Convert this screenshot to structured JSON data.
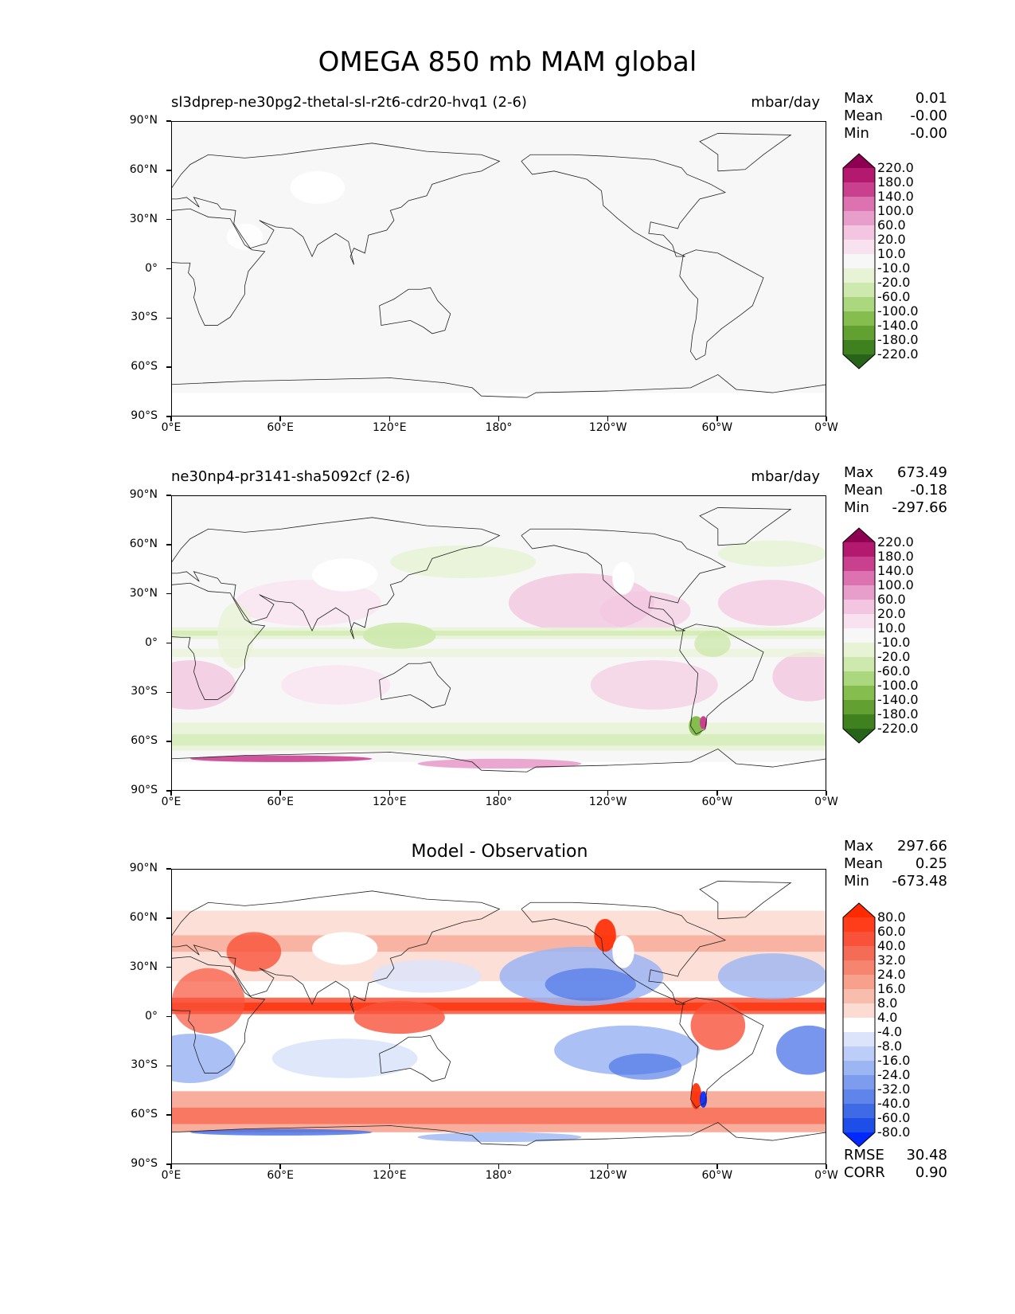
{
  "figure": {
    "title": "OMEGA 850 mb MAM global"
  },
  "chart_data": [
    {
      "type": "heatmap",
      "title_left": "sl3dprep-ne30pg2-thetal-sl-r2t6-cdr20-hvq1 (2-6)",
      "title_right": "mbar/day",
      "x_ticks": [
        "0°E",
        "60°E",
        "120°E",
        "180°",
        "120°W",
        "60°W",
        "0°W"
      ],
      "y_ticks": [
        "90°N",
        "60°N",
        "30°N",
        "0°",
        "30°S",
        "60°S",
        "90°S"
      ],
      "xlim": [
        0,
        360
      ],
      "ylim": [
        -90,
        90
      ],
      "stats": [
        {
          "label": "Max",
          "value": "0.01"
        },
        {
          "label": "Mean",
          "value": "-0.00"
        },
        {
          "label": "Min",
          "value": "-0.00"
        }
      ],
      "colorbar": {
        "labels": [
          "220.0",
          "180.0",
          "140.0",
          "100.0",
          "60.0",
          "20.0",
          "10.0",
          "-10.0",
          "-20.0",
          "-60.0",
          "-100.0",
          "-140.0",
          "-180.0",
          "-220.0"
        ],
        "colors": [
          "#8e0152",
          "#b3196e",
          "#c9408f",
          "#dc72b0",
          "#e89ecb",
          "#f3c5e0",
          "#f9e2ef",
          "#f7f7f7",
          "#e8f3d6",
          "#cde9ad",
          "#abd77e",
          "#85bd4f",
          "#63a032",
          "#40811f",
          "#276419"
        ]
      },
      "field": "uniform",
      "field_summary": "near-zero everywhere"
    },
    {
      "type": "heatmap",
      "title_left": "ne30np4-pr3141-sha5092cf (2-6)",
      "title_right": "mbar/day",
      "x_ticks": [
        "0°E",
        "60°E",
        "120°E",
        "180°",
        "120°W",
        "60°W",
        "0°W"
      ],
      "y_ticks": [
        "90°N",
        "60°N",
        "30°N",
        "0°",
        "30°S",
        "60°S",
        "90°S"
      ],
      "xlim": [
        0,
        360
      ],
      "ylim": [
        -90,
        90
      ],
      "stats": [
        {
          "label": "Max",
          "value": "673.49"
        },
        {
          "label": "Mean",
          "value": "-0.18"
        },
        {
          "label": "Min",
          "value": "-297.66"
        }
      ],
      "colorbar": {
        "labels": [
          "220.0",
          "180.0",
          "140.0",
          "100.0",
          "60.0",
          "20.0",
          "10.0",
          "-10.0",
          "-20.0",
          "-60.0",
          "-100.0",
          "-140.0",
          "-180.0",
          "-220.0"
        ],
        "colors": [
          "#8e0152",
          "#b3196e",
          "#c9408f",
          "#dc72b0",
          "#e89ecb",
          "#f3c5e0",
          "#f9e2ef",
          "#f7f7f7",
          "#e8f3d6",
          "#cde9ad",
          "#abd77e",
          "#85bd4f",
          "#63a032",
          "#40811f",
          "#276419"
        ]
      },
      "field": "model",
      "field_summary": "subsidence (pink) over subtropical oceans, ascent (green) along ITCZ and storm tracks"
    },
    {
      "type": "heatmap",
      "title_center": "Model - Observation",
      "x_ticks": [
        "0°E",
        "60°E",
        "120°E",
        "180°",
        "120°W",
        "60°W",
        "0°W"
      ],
      "y_ticks": [
        "90°N",
        "60°N",
        "30°N",
        "0°",
        "30°S",
        "60°S",
        "90°S"
      ],
      "xlim": [
        0,
        360
      ],
      "ylim": [
        -90,
        90
      ],
      "stats": [
        {
          "label": "Max",
          "value": "297.66"
        },
        {
          "label": "Mean",
          "value": "0.25"
        },
        {
          "label": "Min",
          "value": "-673.48"
        }
      ],
      "annotations": [
        {
          "label": "RMSE",
          "value": "30.48"
        },
        {
          "label": "CORR",
          "value": "0.90"
        }
      ],
      "colorbar": {
        "labels": [
          "80.0",
          "60.0",
          "40.0",
          "32.0",
          "24.0",
          "16.0",
          "8.0",
          "4.0",
          "-4.0",
          "-8.0",
          "-16.0",
          "-24.0",
          "-32.0",
          "-40.0",
          "-60.0",
          "-80.0"
        ],
        "colors": [
          "#ff2a00",
          "#ff3d1a",
          "#f8533a",
          "#f46c55",
          "#f5856f",
          "#f7a08c",
          "#f9bdad",
          "#fcdcd2",
          "#ffffff",
          "#dbe4fb",
          "#bccdf8",
          "#9cb5f3",
          "#7d9cee",
          "#5f84ea",
          "#3f6ae6",
          "#1d4fe8",
          "#0028ff"
        ]
      },
      "field": "difference",
      "field_summary": "positive (red) in ITCZ and storm tracks, negative (blue) over subtropical oceans"
    }
  ]
}
